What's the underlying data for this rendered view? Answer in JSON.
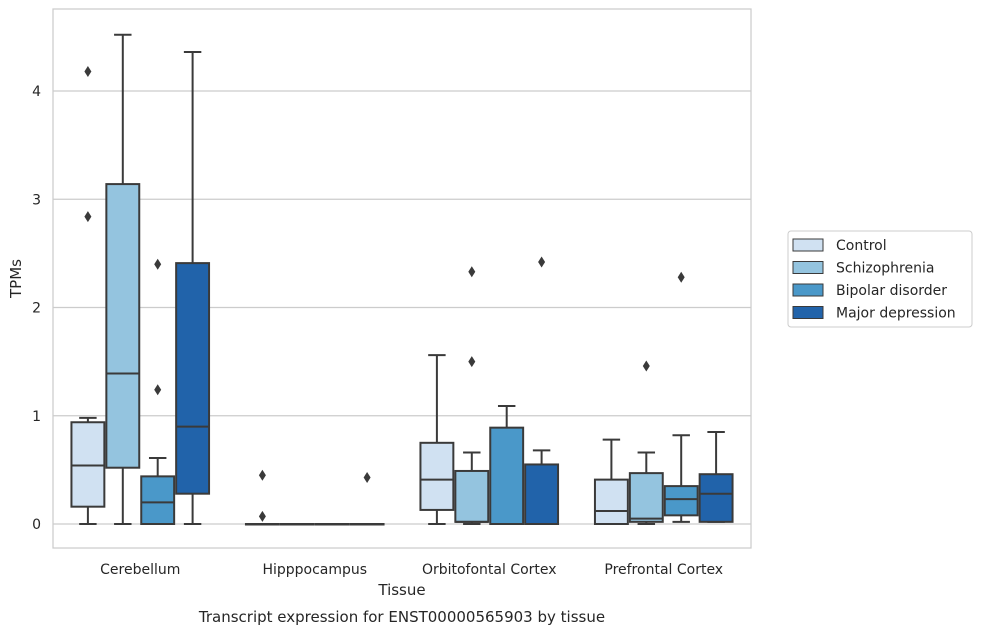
{
  "chart_data": {
    "type": "box",
    "title": "",
    "caption": "Transcript expression for ENST00000565903 by tissue",
    "xlabel": "Tissue",
    "ylabel": "TPMs",
    "ylim": [
      -0.22,
      4.75
    ],
    "yticks": [
      0,
      1,
      2,
      3,
      4
    ],
    "grid": "horizontal",
    "legend_position": "right",
    "categories": [
      "Cerebellum",
      "Hipppocampus",
      "Orbitofontal Cortex",
      "Prefrontal Cortex"
    ],
    "series": [
      {
        "name": "Control",
        "color": "#d0e1f2",
        "boxes": [
          {
            "whisker_low": 0.0,
            "q1": 0.16,
            "median": 0.54,
            "q3": 0.94,
            "whisker_high": 0.98,
            "outliers": [
              2.84,
              4.18
            ]
          },
          {
            "whisker_low": 0.0,
            "q1": 0.0,
            "median": 0.0,
            "q3": 0.0,
            "whisker_high": 0.0,
            "outliers": [
              0.07,
              0.45
            ]
          },
          {
            "whisker_low": 0.0,
            "q1": 0.13,
            "median": 0.41,
            "q3": 0.75,
            "whisker_high": 1.56,
            "outliers": []
          },
          {
            "whisker_low": 0.0,
            "q1": 0.0,
            "median": 0.12,
            "q3": 0.41,
            "whisker_high": 0.78,
            "outliers": []
          }
        ]
      },
      {
        "name": "Schizophrenia",
        "color": "#94c4df",
        "boxes": [
          {
            "whisker_low": 0.0,
            "q1": 0.52,
            "median": 1.39,
            "q3": 3.14,
            "whisker_high": 4.52,
            "outliers": []
          },
          {
            "whisker_low": 0.0,
            "q1": 0.0,
            "median": 0.0,
            "q3": 0.0,
            "whisker_high": 0.0,
            "outliers": []
          },
          {
            "whisker_low": 0.0,
            "q1": 0.02,
            "median": 0.02,
            "q3": 0.49,
            "whisker_high": 0.66,
            "outliers": [
              1.5,
              2.33
            ]
          },
          {
            "whisker_low": 0.0,
            "q1": 0.02,
            "median": 0.05,
            "q3": 0.47,
            "whisker_high": 0.66,
            "outliers": [
              1.46
            ]
          }
        ]
      },
      {
        "name": "Bipolar disorder",
        "color": "#4a98c9",
        "boxes": [
          {
            "whisker_low": 0.0,
            "q1": 0.0,
            "median": 0.2,
            "q3": 0.44,
            "whisker_high": 0.61,
            "outliers": [
              1.24,
              2.4
            ]
          },
          {
            "whisker_low": 0.0,
            "q1": 0.0,
            "median": 0.0,
            "q3": 0.0,
            "whisker_high": 0.0,
            "outliers": []
          },
          {
            "whisker_low": 0.0,
            "q1": 0.0,
            "median": 0.0,
            "q3": 0.89,
            "whisker_high": 1.09,
            "outliers": []
          },
          {
            "whisker_low": 0.02,
            "q1": 0.08,
            "median": 0.23,
            "q3": 0.35,
            "whisker_high": 0.82,
            "outliers": [
              2.28
            ]
          }
        ]
      },
      {
        "name": "Major depression",
        "color": "#2163aa",
        "boxes": [
          {
            "whisker_low": 0.0,
            "q1": 0.28,
            "median": 0.9,
            "q3": 2.41,
            "whisker_high": 4.36,
            "outliers": []
          },
          {
            "whisker_low": 0.0,
            "q1": 0.0,
            "median": 0.0,
            "q3": 0.0,
            "whisker_high": 0.0,
            "outliers": [
              0.43
            ]
          },
          {
            "whisker_low": 0.0,
            "q1": 0.0,
            "median": 0.0,
            "q3": 0.55,
            "whisker_high": 0.68,
            "outliers": [
              2.42
            ]
          },
          {
            "whisker_low": 0.02,
            "q1": 0.02,
            "median": 0.28,
            "q3": 0.46,
            "whisker_high": 0.85,
            "outliers": []
          }
        ]
      }
    ]
  }
}
